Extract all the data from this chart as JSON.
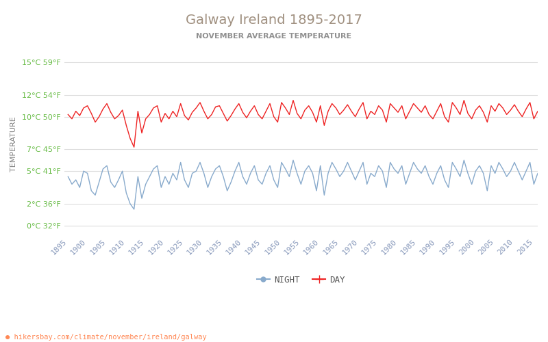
{
  "title": "Galway Ireland 1895-2017",
  "subtitle": "NOVEMBER AVERAGE TEMPERATURE",
  "ylabel": "TEMPERATURE",
  "xlabel_url": "hikersbay.com/climate/november/ireland/galway",
  "year_start": 1895,
  "year_end": 2015,
  "year_step": 5,
  "yticks_c": [
    0,
    2,
    5,
    7,
    10,
    12,
    15
  ],
  "yticks_f": [
    32,
    36,
    41,
    45,
    50,
    54,
    59
  ],
  "ymin": -1,
  "ymax": 16,
  "title_color": "#a09080",
  "subtitle_color": "#909090",
  "ylabel_color": "#808080",
  "ytick_color": "#66bb44",
  "xtick_color": "#8899bb",
  "grid_color": "#dddddd",
  "day_color": "#ee2222",
  "night_color": "#88aacc",
  "url_color": "#ff8855",
  "background_color": "#ffffff",
  "day_temps": [
    10.2,
    9.8,
    10.5,
    10.1,
    10.8,
    11.0,
    10.3,
    9.5,
    10.0,
    10.7,
    11.2,
    10.4,
    9.8,
    10.1,
    10.6,
    9.2,
    8.0,
    7.2,
    10.5,
    8.5,
    9.8,
    10.2,
    10.8,
    11.0,
    9.5,
    10.3,
    9.8,
    10.5,
    10.0,
    11.2,
    10.1,
    9.7,
    10.4,
    10.8,
    11.3,
    10.5,
    9.8,
    10.2,
    10.9,
    11.0,
    10.3,
    9.6,
    10.1,
    10.7,
    11.2,
    10.4,
    9.9,
    10.5,
    11.0,
    10.2,
    9.8,
    10.5,
    11.2,
    10.0,
    9.5,
    11.3,
    10.8,
    10.2,
    11.5,
    10.3,
    9.8,
    10.6,
    11.0,
    10.4,
    9.5,
    11.0,
    9.2,
    10.5,
    11.2,
    10.8,
    10.2,
    10.6,
    11.1,
    10.5,
    10.0,
    10.7,
    11.3,
    9.8,
    10.5,
    10.2,
    11.0,
    10.6,
    9.5,
    11.2,
    10.8,
    10.4,
    11.0,
    9.8,
    10.5,
    11.2,
    10.8,
    10.4,
    11.0,
    10.2,
    9.8,
    10.5,
    11.2,
    10.0,
    9.5,
    11.3,
    10.8,
    10.2,
    11.5,
    10.3,
    9.8,
    10.6,
    11.0,
    10.4,
    9.5,
    11.0,
    10.5,
    11.2,
    10.8,
    10.2,
    10.6,
    11.1,
    10.5,
    10.0,
    10.7,
    11.3,
    9.8,
    10.5,
    10.2
  ],
  "night_temps": [
    4.5,
    3.8,
    4.2,
    3.5,
    5.0,
    4.8,
    3.2,
    2.8,
    4.0,
    5.2,
    5.5,
    4.0,
    3.5,
    4.2,
    5.0,
    3.0,
    2.0,
    1.5,
    4.5,
    2.5,
    3.8,
    4.5,
    5.2,
    5.5,
    3.5,
    4.5,
    3.8,
    4.8,
    4.2,
    5.8,
    4.2,
    3.5,
    4.8,
    5.0,
    5.8,
    4.8,
    3.5,
    4.5,
    5.2,
    5.5,
    4.5,
    3.2,
    4.0,
    5.0,
    5.8,
    4.5,
    3.8,
    4.8,
    5.5,
    4.2,
    3.8,
    4.8,
    5.5,
    4.2,
    3.5,
    5.8,
    5.2,
    4.5,
    6.0,
    4.8,
    3.8,
    5.0,
    5.5,
    4.8,
    3.2,
    5.5,
    2.8,
    4.8,
    5.8,
    5.2,
    4.5,
    5.0,
    5.8,
    5.0,
    4.2,
    5.0,
    5.8,
    3.8,
    4.8,
    4.5,
    5.5,
    5.0,
    3.5,
    5.8,
    5.2,
    4.8,
    5.5,
    3.8,
    4.8,
    5.8,
    5.2,
    4.8,
    5.5,
    4.5,
    3.8,
    4.8,
    5.5,
    4.2,
    3.5,
    5.8,
    5.2,
    4.5,
    6.0,
    4.8,
    3.8,
    5.0,
    5.5,
    4.8,
    3.2,
    5.5,
    4.8,
    5.8,
    5.2,
    4.5,
    5.0,
    5.8,
    5.0,
    4.2,
    5.0,
    5.8,
    3.8,
    4.8,
    4.5
  ]
}
